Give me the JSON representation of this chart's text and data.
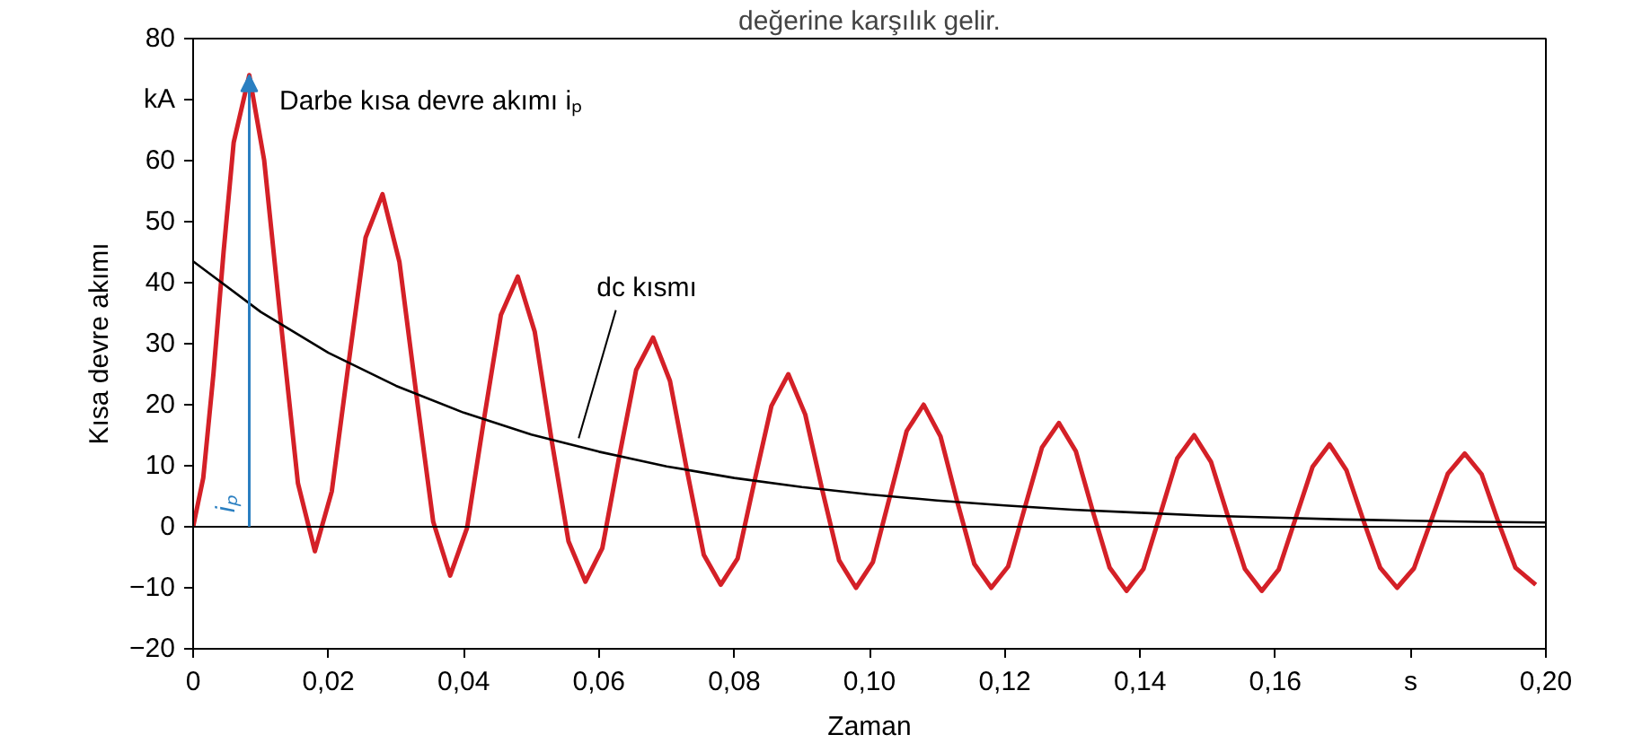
{
  "chart_data": {
    "type": "line",
    "xlabel": "Zaman",
    "ylabel": "Kısa devre akımı",
    "xlim": [
      0,
      0.2
    ],
    "ylim": [
      -20,
      80
    ],
    "xticks": [
      0,
      {
        "value": 0.02,
        "label": "0,02"
      },
      {
        "value": 0.04,
        "label": "0,04"
      },
      {
        "value": 0.06,
        "label": "0,06"
      },
      {
        "value": 0.08,
        "label": "0,08"
      },
      {
        "value": 0.1,
        "label": "0,10"
      },
      {
        "value": 0.12,
        "label": "0,12"
      },
      {
        "value": 0.14,
        "label": "0,14"
      },
      {
        "value": 0.16,
        "label": "0,16"
      },
      {
        "value": 0.18,
        "label": "s"
      },
      {
        "value": 0.2,
        "label": "0,20"
      }
    ],
    "yticks": [
      -20,
      -10,
      0,
      10,
      20,
      30,
      40,
      50,
      60,
      {
        "value": 70,
        "label": "kA"
      },
      80
    ],
    "grid": false,
    "marker": "none",
    "line_style": "solid",
    "series": [
      {
        "color": "#d42027",
        "x": [
          0,
          0.0015,
          0.003,
          0.0045,
          0.006,
          0.0083,
          0.0105,
          0.013,
          0.0155,
          0.018,
          0.0205,
          0.023,
          0.0255,
          0.028,
          0.0305,
          0.033,
          0.0355,
          0.038,
          0.0405,
          0.043,
          0.0455,
          0.048,
          0.0505,
          0.053,
          0.0555,
          0.058,
          0.0605,
          0.063,
          0.0655,
          0.068,
          0.0705,
          0.073,
          0.0755,
          0.078,
          0.0805,
          0.083,
          0.0855,
          0.088,
          0.0905,
          0.093,
          0.0955,
          0.098,
          0.1005,
          0.103,
          0.1055,
          0.108,
          0.1105,
          0.113,
          0.1155,
          0.118,
          0.1205,
          0.123,
          0.1255,
          0.128,
          0.1305,
          0.133,
          0.1355,
          0.138,
          0.1405,
          0.143,
          0.1455,
          0.148,
          0.1505,
          0.153,
          0.1555,
          0.158,
          0.1605,
          0.163,
          0.1655,
          0.168,
          0.1705,
          0.173,
          0.1755,
          0.178,
          0.1805,
          0.183,
          0.1855,
          0.188,
          0.1905,
          0.193,
          0.1955,
          0.1985
        ],
        "values": [
          0,
          8,
          25,
          45,
          63,
          74,
          60.1,
          33.2,
          7.1,
          -4,
          5.8,
          26.9,
          47.4,
          54.5,
          43.4,
          21.7,
          0.8,
          -8,
          -0.2,
          17.6,
          34.7,
          41,
          32.0,
          14.2,
          -2.4,
          -9,
          -3.5,
          11.5,
          25.7,
          31,
          23.9,
          9.3,
          -4.6,
          -9.5,
          -5.2,
          7.5,
          19.8,
          25,
          18.4,
          6.1,
          -5.5,
          -10,
          -5.8,
          4.9,
          15.7,
          20,
          14.8,
          4.0,
          -6.1,
          -10,
          -6.5,
          3.3,
          13.0,
          17,
          12.4,
          2.6,
          -6.7,
          -10.5,
          -6.9,
          2.1,
          11.2,
          15,
          10.6,
          1.7,
          -6.9,
          -10.5,
          -7.0,
          1.4,
          9.8,
          13.5,
          9.3,
          1.1,
          -6.7,
          -10,
          -6.8,
          0.9,
          8.7,
          12,
          8.6,
          0.7,
          -6.7,
          -9.5
        ]
      },
      {
        "color": "#000000",
        "x": [
          0,
          0.01,
          0.02,
          0.03,
          0.04,
          0.05,
          0.06,
          0.07,
          0.08,
          0.09,
          0.1,
          0.11,
          0.12,
          0.13,
          0.14,
          0.15,
          0.16,
          0.17,
          0.18,
          0.19,
          0.2
        ],
        "values": [
          43.5,
          35.2,
          28.5,
          23.1,
          18.7,
          15.1,
          12.3,
          9.9,
          8.0,
          6.5,
          5.3,
          4.3,
          3.5,
          2.8,
          2.3,
          1.8,
          1.5,
          1.2,
          1.0,
          0.8,
          0.7
        ]
      }
    ],
    "ref_lines": [
      {
        "axis": "y",
        "value": 0,
        "color": "#000000"
      }
    ],
    "annotations": [
      "Darbe kısa devre akımı iₚ",
      {
        "text": "iₚ",
        "x": 0.0083,
        "y": 74
      },
      {
        "text": "dc kısmı",
        "x": 0.057,
        "y": 14.5
      },
      "değerine karşılık gelir."
    ]
  }
}
